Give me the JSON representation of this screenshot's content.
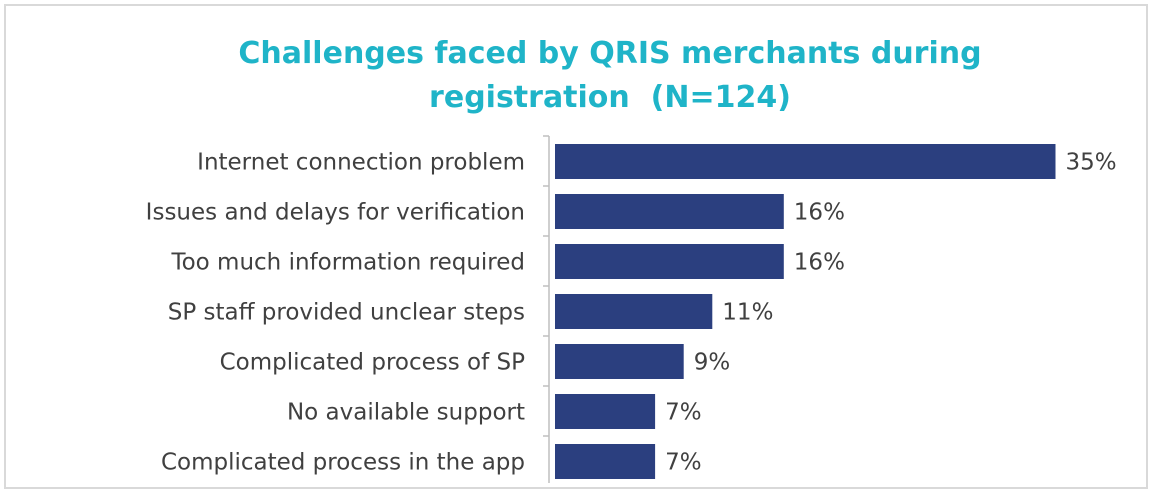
{
  "chart_data": {
    "type": "barh",
    "title": "Challenges faced by QRIS merchants during registration  (N=124)",
    "categories": [
      "Internet connection problem",
      "Issues and delays for verification",
      "Too much information required",
      "SP staff provided unclear steps",
      "Complicated process of SP",
      "No available support",
      "Complicated process in the app"
    ],
    "values": [
      35,
      16,
      16,
      11,
      9,
      7,
      7
    ],
    "value_labels": [
      "35%",
      "16%",
      "16%",
      "11%",
      "9%",
      "7%",
      "7%"
    ],
    "color": "#2b3f7f",
    "xlim": [
      0,
      40
    ]
  }
}
